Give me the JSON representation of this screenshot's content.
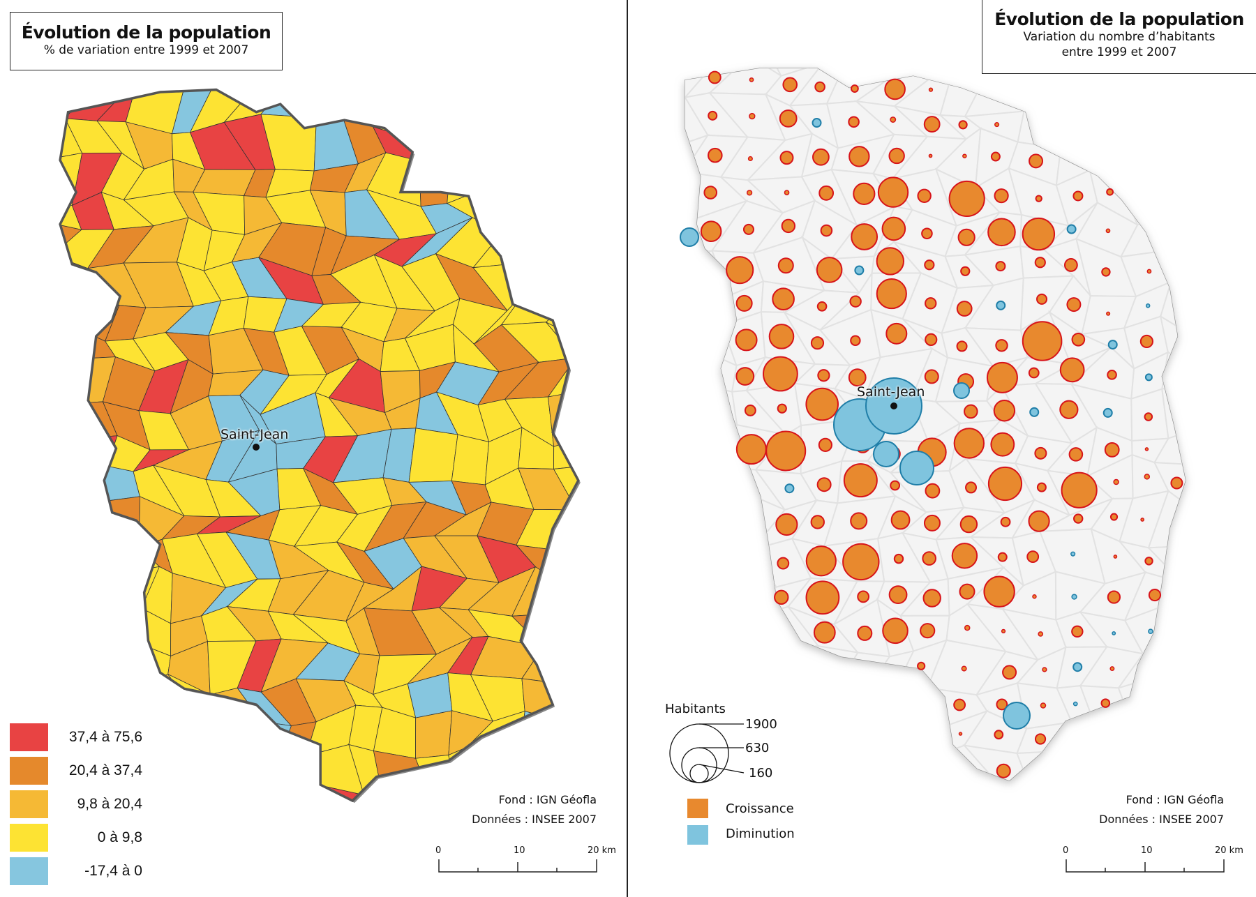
{
  "left_map": {
    "title": "Évolution de la population",
    "subtitle": "% de variation entre 1999 et 2007",
    "city_label": "Saint-Jean",
    "legend": [
      {
        "label": "37,4 à 75,6",
        "color": "#e84343"
      },
      {
        "label": "20,4 à 37,4",
        "color": "#e5892c"
      },
      {
        "label": "9,8 à 20,4",
        "color": "#f5b935"
      },
      {
        "label": "0 à 9,8",
        "color": "#fde333"
      },
      {
        "label": "-17,4 à 0",
        "color": "#86c6df"
      }
    ],
    "source_fond": "Fond : IGN Géofla",
    "source_donnees": "Données : INSEE 2007",
    "scale": {
      "zero": "0",
      "mid": "10",
      "end": "20 km"
    }
  },
  "right_map": {
    "title": "Évolution de la population",
    "subtitle_line1": "Variation du nombre d’habitants",
    "subtitle_line2": "entre 1999 et 2007",
    "city_label": "Saint-Jean",
    "size_legend": {
      "title": "Habitants",
      "values": [
        "1900",
        "630",
        "160"
      ]
    },
    "color_legend": [
      {
        "label": "Croissance",
        "color": "#e8892e",
        "stroke": "#d7141a"
      },
      {
        "label": "Diminution",
        "color": "#7fc4de",
        "stroke": "#1f7ea8"
      }
    ],
    "source_fond": "Fond : IGN Géofla",
    "source_donnees": "Données : INSEE 2007",
    "scale": {
      "zero": "0",
      "mid": "10",
      "end": "20 km"
    }
  }
}
